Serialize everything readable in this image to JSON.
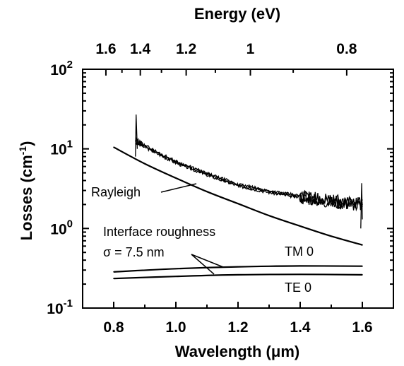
{
  "chart_data": {
    "type": "line",
    "title": "",
    "xlabel": "Wavelength (μm)",
    "x2label": "Energy (eV)",
    "ylabel_main": "Losses (cm",
    "ylabel_sup": "-1",
    "ylabel_close": ")",
    "xlim": [
      0.7,
      1.7
    ],
    "ylim": [
      0.1,
      100
    ],
    "y_scale": "log",
    "x_ticks": [
      "0.8",
      "1.0",
      "1.2",
      "1.4",
      "1.6"
    ],
    "x2_ticks": [
      "1.6",
      "1.4",
      "1.2",
      "1",
      "0.8"
    ],
    "y_ticks": [
      {
        "base": "10",
        "exp": "2"
      },
      {
        "base": "10",
        "exp": "1"
      },
      {
        "base": "10",
        "exp": "0"
      },
      {
        "base": "10",
        "exp": "-1"
      }
    ],
    "grid": false,
    "series": [
      {
        "name": "Rayleigh",
        "x": [
          0.8,
          0.9,
          1.0,
          1.1,
          1.2,
          1.3,
          1.4,
          1.5,
          1.6
        ],
        "y": [
          10.5,
          6.5,
          4.3,
          2.9,
          2.05,
          1.45,
          1.07,
          0.8,
          0.62
        ]
      },
      {
        "name": "TM 0",
        "x": [
          0.8,
          1.0,
          1.2,
          1.4,
          1.6
        ],
        "y": [
          0.285,
          0.312,
          0.33,
          0.338,
          0.336
        ]
      },
      {
        "name": "TE 0",
        "x": [
          0.8,
          1.0,
          1.2,
          1.4,
          1.6
        ],
        "y": [
          0.235,
          0.25,
          0.262,
          0.265,
          0.262
        ]
      },
      {
        "name": "",
        "x": [
          0.87,
          0.95,
          1.0,
          1.1,
          1.2,
          1.3,
          1.4,
          1.5,
          1.6
        ],
        "y": [
          12.5,
          8.5,
          6.8,
          4.8,
          3.5,
          2.9,
          2.5,
          2.2,
          2.0
        ]
      }
    ],
    "annotations": {
      "rayleigh": "Rayleigh",
      "interface": "Interface roughness",
      "sigma": "σ = 7.5 nm",
      "tm0": "TM 0",
      "te0": "TE 0"
    }
  }
}
